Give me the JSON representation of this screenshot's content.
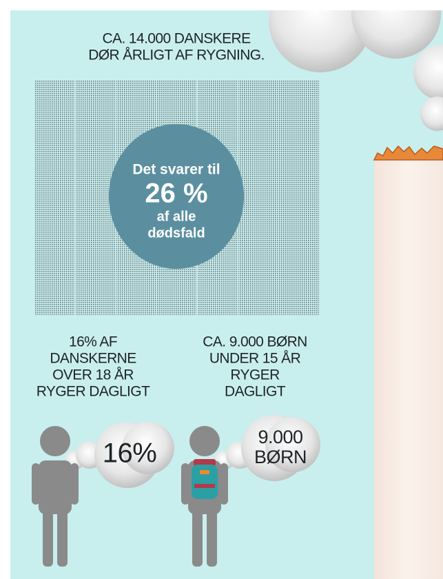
{
  "header": {
    "lines": [
      "CA. 14.000 DANSKERE",
      "DØR ÅRLIGT AF RYGNING."
    ]
  },
  "highlight": {
    "lines": [
      "Det svarer til",
      "26 %",
      "af alle",
      "dødsfald"
    ]
  },
  "adults": {
    "lines": [
      "16% AF",
      "DANSKERNE",
      "OVER 18 ÅR",
      "RYGER DAGLIGT"
    ],
    "cloud": [
      "16%"
    ]
  },
  "children": {
    "lines": [
      "CA. 9.000 BØRN",
      "UNDER 15 ÅR",
      "RYGER",
      "DAGLIGT"
    ],
    "cloud": [
      "9.000",
      "BØRN"
    ]
  }
}
